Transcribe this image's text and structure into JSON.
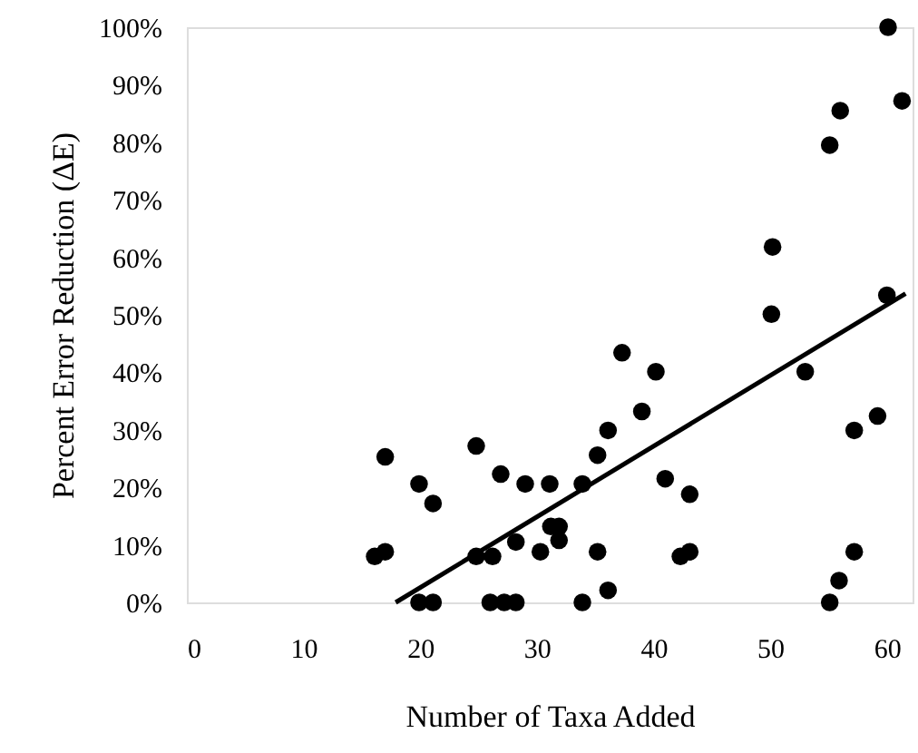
{
  "chart_data": {
    "type": "scatter",
    "xlabel": "Number of Taxa Added",
    "ylabel": "Percent Error Reduction (ΔE)",
    "xlim": [
      0,
      62.2
    ],
    "ylim": [
      0,
      100
    ],
    "xticks": [
      0,
      10,
      20,
      30,
      40,
      50,
      60
    ],
    "yticks": [
      {
        "value": 0,
        "label": "0%"
      },
      {
        "value": 10,
        "label": "10%"
      },
      {
        "value": 20,
        "label": "20%"
      },
      {
        "value": 30,
        "label": "30%"
      },
      {
        "value": 40,
        "label": "40%"
      },
      {
        "value": 50,
        "label": "50%"
      },
      {
        "value": 60,
        "label": "60%"
      },
      {
        "value": 70,
        "label": "70%"
      },
      {
        "value": 80,
        "label": "80%"
      },
      {
        "value": 90,
        "label": "90%"
      },
      {
        "value": 100,
        "label": "100%"
      }
    ],
    "grid": false,
    "series": [
      {
        "color": "#000000",
        "marker": "circle",
        "x": [
          16.1,
          17.0,
          17.0,
          19.9,
          21.1,
          19.9,
          21.1,
          24.8,
          24.8,
          26.2,
          26.9,
          29.0,
          31.1,
          28.2,
          30.3,
          26.0,
          27.2,
          28.2,
          31.2,
          31.9,
          31.9,
          33.9,
          35.2,
          36.1,
          37.3,
          39.0,
          40.2,
          41.0,
          43.1,
          42.3,
          43.1,
          35.2,
          36.1,
          33.9,
          50.1,
          53.0,
          57.2,
          59.2,
          57.2,
          55.9,
          55.1,
          60.0,
          60.1,
          61.3,
          56.0,
          55.1,
          50.2
        ],
        "values": [
          8.0,
          8.8,
          25.3,
          20.6,
          17.2,
          0,
          0,
          27.2,
          8.0,
          8.0,
          22.3,
          20.6,
          20.6,
          10.5,
          8.8,
          0,
          0,
          0,
          13.2,
          13.2,
          10.8,
          20.6,
          25.6,
          29.9,
          43.4,
          33.2,
          40.1,
          21.5,
          18.8,
          8.0,
          8.8,
          8.8,
          2.1,
          0,
          50.1,
          40.1,
          29.9,
          32.4,
          8.8,
          3.8,
          0,
          53.4,
          100,
          87.2,
          85.5,
          79.5,
          61.8
        ]
      },
      {
        "type": "line",
        "color": "#000000",
        "line_style": "solid",
        "marker": "none",
        "x": [
          17.9,
          61.6
        ],
        "values": [
          0,
          53.7
        ]
      }
    ]
  }
}
